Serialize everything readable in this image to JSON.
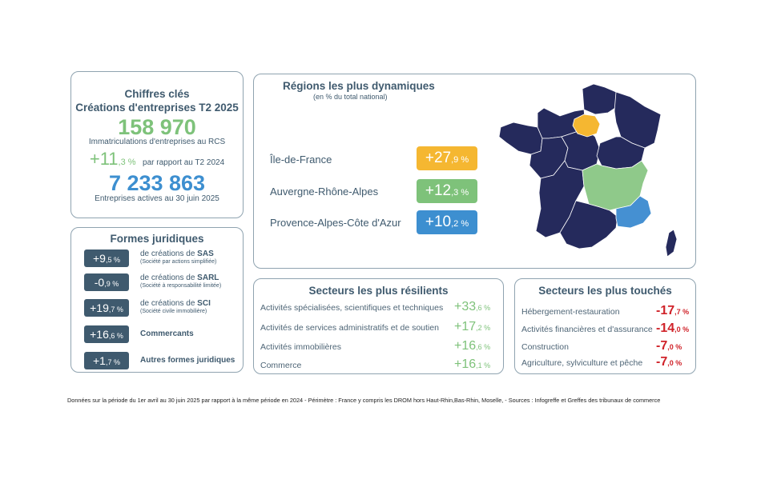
{
  "key_figures": {
    "title_line1": "Chiffres clés",
    "title_line2": "Créations d'entreprises T2 2025",
    "registrations_value": "158 970",
    "registrations_label": "Immatriculations d'entreprises au RCS",
    "growth_main": "+11",
    "growth_decimal": ",3 %",
    "growth_label": "par rapport au T2 2024",
    "active_value": "7 233 863",
    "active_label": "Entreprises actives au 30 juin 2025"
  },
  "legal_forms": {
    "title": "Formes juridiques",
    "items": [
      {
        "value_main": "+9",
        "value_decimal": ",5 %",
        "label_prefix": "de créations de ",
        "label_bold": "SAS",
        "sublabel": "(Société par actions simplifiée)"
      },
      {
        "value_main": "-0",
        "value_decimal": ",9 %",
        "label_prefix": "de créations de ",
        "label_bold": "SARL",
        "sublabel": "(Société à responsabilité limitée)"
      },
      {
        "value_main": "+19",
        "value_decimal": ",7 %",
        "label_prefix": "de créations de ",
        "label_bold": "SCI",
        "sublabel": "(Société civile immobilière)"
      },
      {
        "value_main": "+16",
        "value_decimal": ",6 %",
        "label_bold": "Commercants"
      },
      {
        "value_main": "+1",
        "value_decimal": ",7 %",
        "label_bold": "Autres formes juridiques"
      }
    ]
  },
  "regions": {
    "title": "Régions les plus dynamiques",
    "subtitle": "(en % du total national)",
    "items": [
      {
        "name": "Île-de-France",
        "value_main": "+27",
        "value_decimal": ",9 %",
        "color": "#f5b731"
      },
      {
        "name": "Auvergne-Rhône-Alpes",
        "value_main": "+12",
        "value_decimal": ",3 %",
        "color": "#7ec27a"
      },
      {
        "name": "Provence-Alpes-Côte d'Azur",
        "value_main": "+10",
        "value_decimal": ",2 %",
        "color": "#3d8fd0"
      }
    ],
    "map_colors": {
      "base": "#252a5c",
      "idf": "#f5b731",
      "ara": "#8fc98a",
      "paca": "#4590d2",
      "border": "#ffffff"
    }
  },
  "resilient_sectors": {
    "title": "Secteurs les plus résilients",
    "items": [
      {
        "label": "Activités spécialisées, scientifiques et techniques",
        "value_main": "+33",
        "value_decimal": ",6 %"
      },
      {
        "label": "Activités de services administratifs et de soutien",
        "value_main": "+17",
        "value_decimal": ",2 %"
      },
      {
        "label": "Activités immobilières",
        "value_main": "+16",
        "value_decimal": ",6 %"
      },
      {
        "label": "Commerce",
        "value_main": "+16",
        "value_decimal": ",1 %"
      }
    ]
  },
  "affected_sectors": {
    "title": "Secteurs les plus touchés",
    "items": [
      {
        "label": "Hébergement-restauration",
        "value_main": "-17",
        "value_decimal": ",7 %"
      },
      {
        "label": "Activités financières et d'assurance",
        "value_main": "-14",
        "value_decimal": ",0 %"
      },
      {
        "label": "Construction",
        "value_main": "-7",
        "value_decimal": ",0 %"
      },
      {
        "label": "Agriculture, sylviculture et pêche",
        "value_main": "-7",
        "value_decimal": ",0 %"
      }
    ]
  },
  "footnote": "Données sur la période du 1er avril au 30 juin 2025 par rapport à la même période en 2024  -  Périmètre : France y compris les DROM hors Haut-Rhin,Bas-Rhin, Moselle,  - Sources : Infogreffe et Greffes des tribunaux de commerce"
}
